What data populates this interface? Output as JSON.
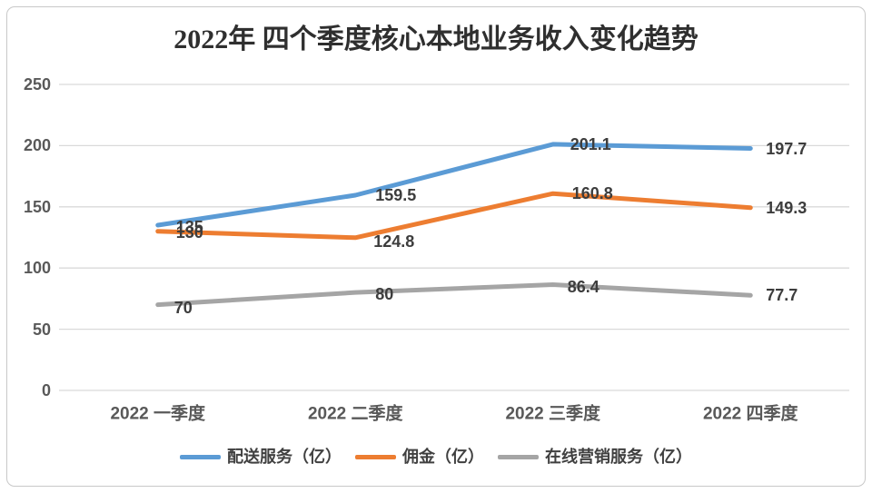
{
  "page": {
    "background": "#ffffff",
    "frame_border_color": "#c8c8c8"
  },
  "chart_data": {
    "type": "line",
    "title": "2022年 四个季度核心本地业务收入变化趋势",
    "categories": [
      "2022 一季度",
      "2022 二季度",
      "2022 三季度",
      "2022 四季度"
    ],
    "series": [
      {
        "name": "配送服务（亿）",
        "color": "#5B9BD5",
        "values": [
          135,
          159.5,
          201.1,
          197.7
        ],
        "label_offsets": [
          [
            20,
            2
          ],
          [
            22,
            0
          ],
          [
            19,
            0
          ],
          [
            17,
            0
          ]
        ]
      },
      {
        "name": "佣金（亿）",
        "color": "#ED7D31",
        "values": [
          130,
          124.8,
          160.8,
          149.3
        ],
        "label_offsets": [
          [
            20,
            1
          ],
          [
            20,
            4
          ],
          [
            21,
            0
          ],
          [
            17,
            0
          ]
        ]
      },
      {
        "name": "在线营销服务（亿）",
        "color": "#A5A5A5",
        "values": [
          70,
          80,
          86.4,
          77.7
        ],
        "label_offsets": [
          [
            18,
            3
          ],
          [
            22,
            2
          ],
          [
            16,
            2
          ],
          [
            17,
            0
          ]
        ]
      }
    ],
    "xlabel": "",
    "ylabel": "",
    "ylim": [
      0,
      250
    ],
    "yticks": [
      0,
      50,
      100,
      150,
      200,
      250
    ],
    "grid": true,
    "gridline_color": "#D9D9D9",
    "tick_label_color": "#595959",
    "data_label_color": "#3d3d3d",
    "title_color": "#2f2f2f",
    "legend_position": "bottom",
    "line_width": 5
  }
}
